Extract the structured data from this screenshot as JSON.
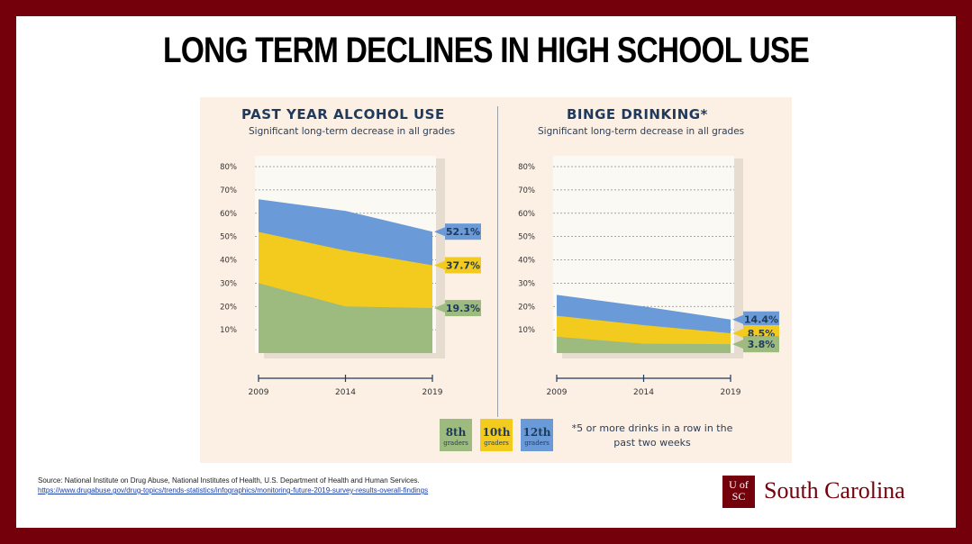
{
  "slide": {
    "title": "LONG TERM DECLINES IN HIGH SCHOOL USE",
    "source_line": "Source: National Institute on Drug Abuse, National Institutes of Health, U.S. Department of Health and Human Services.",
    "source_url": "https://www.drugabuse.gov/drug-topics/trends-statistics/infographics/monitoring-future-2019-survey-results-overall-findings",
    "logo_mark": "U of SC",
    "logo_text": "South Carolina",
    "brand_color": "#73000a"
  },
  "legend": [
    {
      "grade": "8th",
      "sub": "graders",
      "color": "#9dbb7e"
    },
    {
      "grade": "10th",
      "sub": "graders",
      "color": "#f2cb1e"
    },
    {
      "grade": "12th",
      "sub": "graders",
      "color": "#6a9bd8"
    }
  ],
  "footnote": "*5 or more drinks in a row in the past two weeks",
  "chart_data": [
    {
      "type": "area",
      "title": "PAST YEAR ALCOHOL USE",
      "subtitle": "Significant long-term decrease in all grades",
      "x": [
        "2009",
        "2014",
        "2019"
      ],
      "ylim": [
        0,
        80
      ],
      "yticks": [
        "80%",
        "70%",
        "60%",
        "50%",
        "40%",
        "30%",
        "20%",
        "10%"
      ],
      "grid": true,
      "series": [
        {
          "name": "12th",
          "values": [
            66,
            61,
            52.1
          ],
          "label": "52.1%",
          "color": "#6a9bd8"
        },
        {
          "name": "10th",
          "values": [
            52,
            44,
            37.7
          ],
          "label": "37.7%",
          "color": "#f2cb1e"
        },
        {
          "name": "8th",
          "values": [
            30,
            20,
            19.3
          ],
          "label": "19.3%",
          "color": "#9dbb7e"
        }
      ]
    },
    {
      "type": "area",
      "title": "BINGE DRINKING*",
      "subtitle": "Significant long-term decrease in all grades",
      "x": [
        "2009",
        "2014",
        "2019"
      ],
      "ylim": [
        0,
        80
      ],
      "yticks": [
        "80%",
        "70%",
        "60%",
        "50%",
        "40%",
        "30%",
        "20%",
        "10%"
      ],
      "grid": true,
      "series": [
        {
          "name": "12th",
          "values": [
            25,
            20,
            14.4
          ],
          "label": "14.4%",
          "color": "#6a9bd8"
        },
        {
          "name": "10th",
          "values": [
            16,
            12,
            8.5
          ],
          "label": "8.5%",
          "color": "#f2cb1e"
        },
        {
          "name": "8th",
          "values": [
            7,
            4,
            3.8
          ],
          "label": "3.8%",
          "color": "#9dbb7e"
        }
      ]
    }
  ]
}
